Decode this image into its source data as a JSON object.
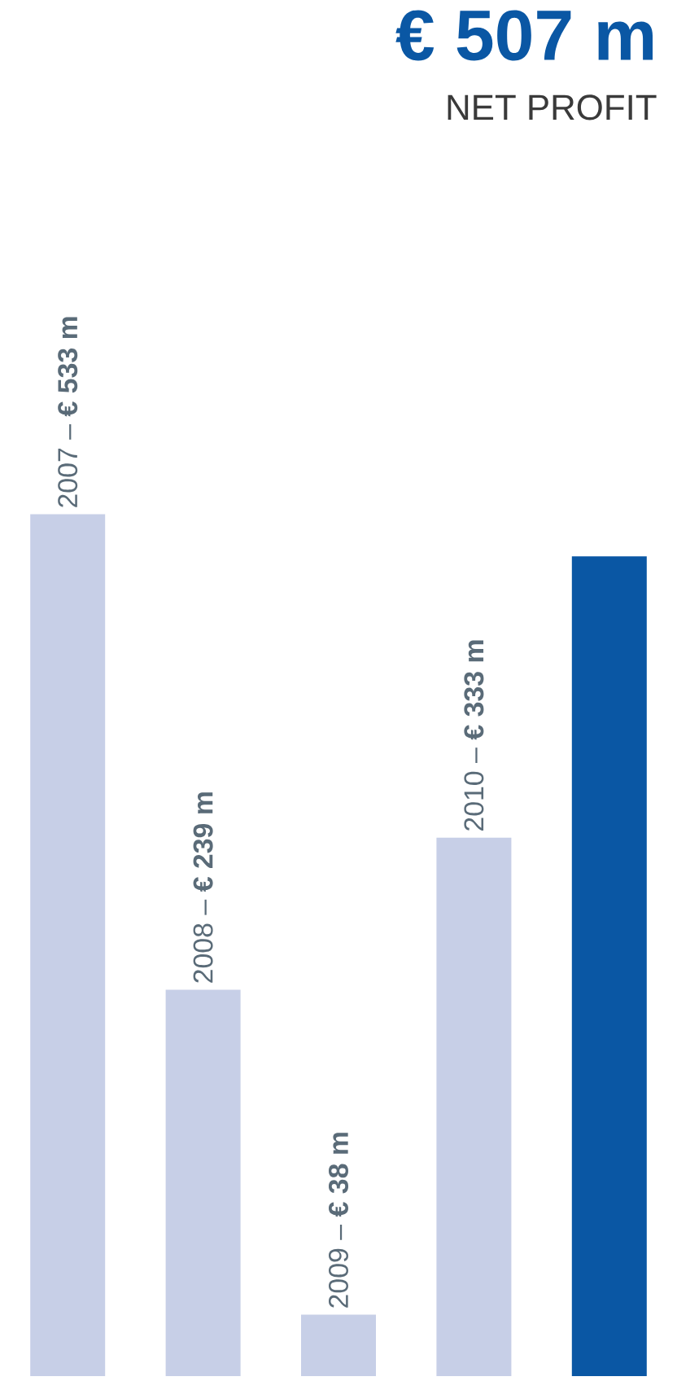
{
  "chart_data": {
    "type": "bar",
    "title": "€ 507 m",
    "subtitle": "NET PROFIT",
    "categories": [
      null,
      null,
      null,
      null,
      null
    ],
    "values": [
      533,
      239,
      38,
      333,
      507
    ],
    "colors": [
      "#c7cfe7",
      "#c7cfe7",
      "#c7cfe7",
      "#c7cfe7",
      "#0a57a4"
    ],
    "value_labels": [
      "2007 – **€ 533 m**",
      "2008 – **€ 239 m**",
      "2009 – **€ 38 m**",
      "2010 – **€ 333 m**",
      null
    ]
  }
}
